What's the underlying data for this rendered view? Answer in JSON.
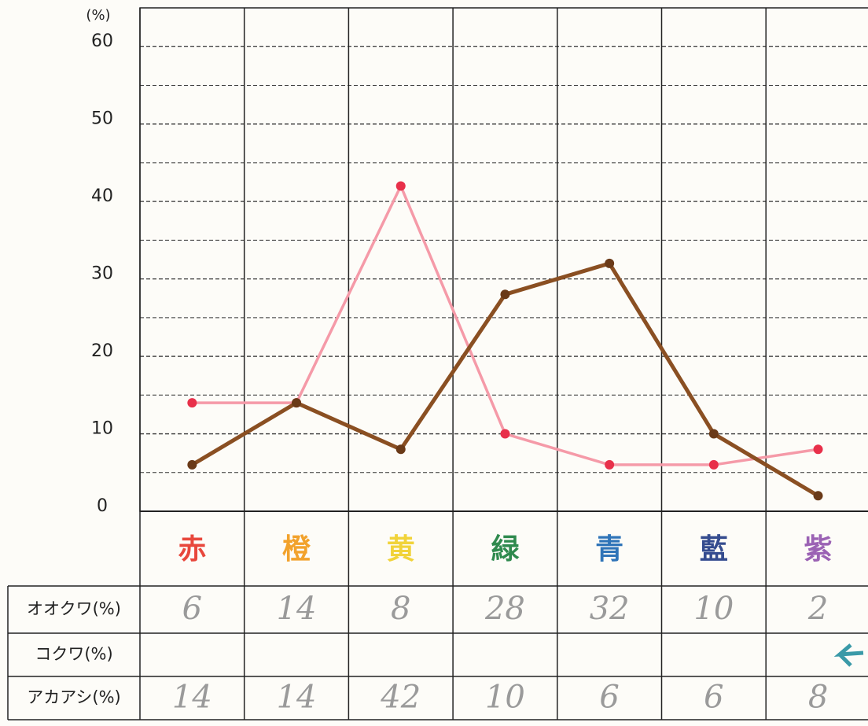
{
  "chart_data": {
    "type": "line",
    "y_label": "(%)",
    "categories": [
      "赤",
      "橙",
      "黄",
      "緑",
      "青",
      "藍",
      "紫"
    ],
    "category_colors": [
      "#e8473c",
      "#f2a22c",
      "#f1d33a",
      "#2f8a4e",
      "#2f74b8",
      "#354c8f",
      "#9b62b4"
    ],
    "series": [
      {
        "name": "オオクワ(%)",
        "color": "#8a4f22",
        "values": [
          6,
          14,
          8,
          28,
          32,
          10,
          2
        ]
      },
      {
        "name": "コクワ(%)",
        "values": [
          null,
          null,
          null,
          null,
          null,
          null,
          null
        ]
      },
      {
        "name": "アカアシ(%)",
        "color": "#f59aa8",
        "values": [
          14,
          14,
          42,
          10,
          6,
          6,
          8
        ]
      }
    ],
    "ylim": [
      0,
      65
    ],
    "yticks": [
      0,
      10,
      20,
      30,
      40,
      50,
      60
    ],
    "minor_yticks": [
      5,
      15,
      25,
      35,
      45,
      55
    ],
    "grid": true
  }
}
